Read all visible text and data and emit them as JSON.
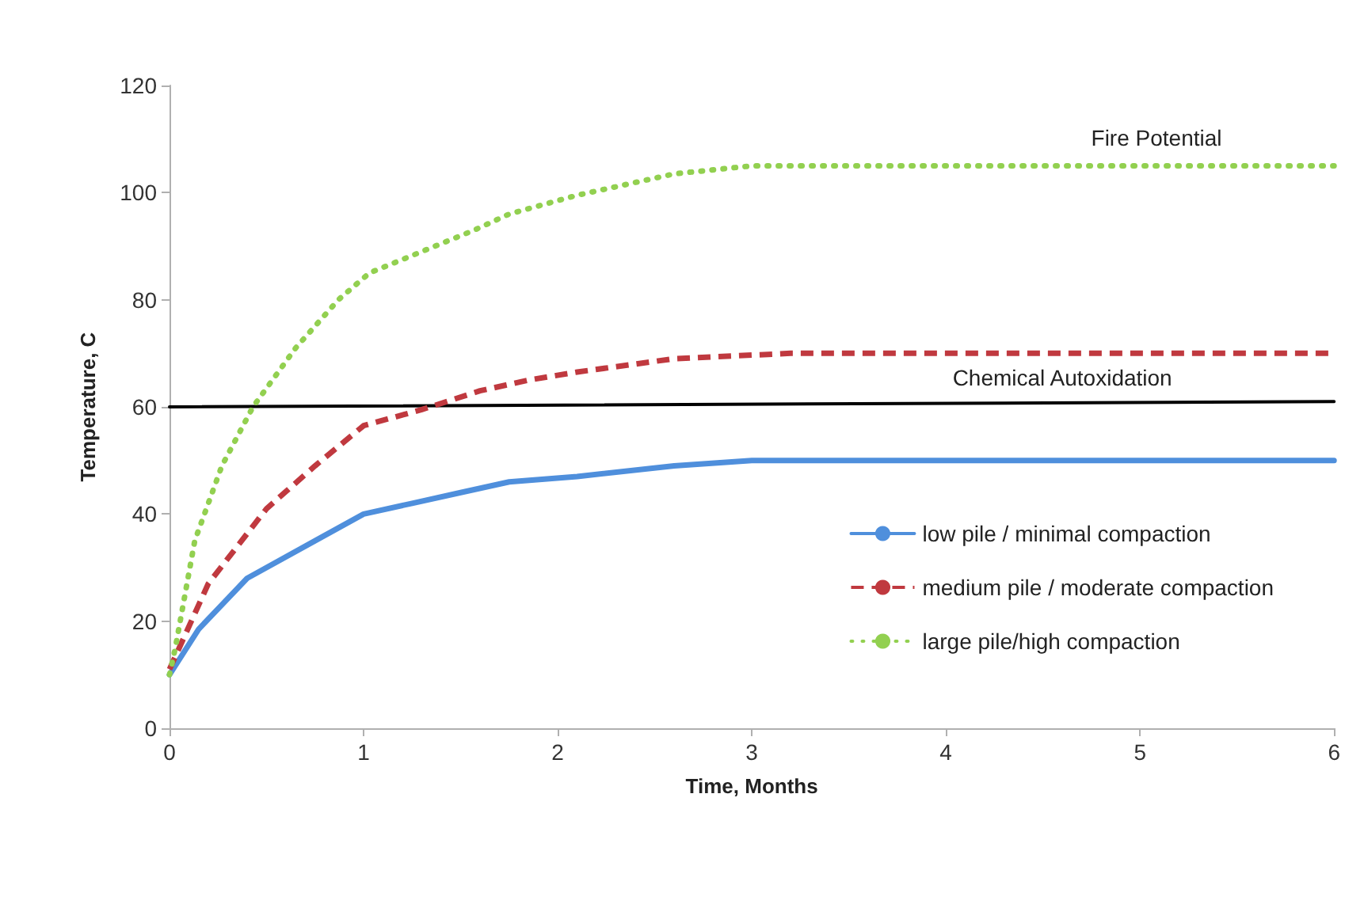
{
  "chart_data": {
    "type": "line",
    "xlabel": "Time, Months",
    "ylabel": "Temperature, C",
    "xlim": [
      0,
      6
    ],
    "xticks": [
      0,
      1,
      2,
      3,
      4,
      5,
      6
    ],
    "ylim": [
      0,
      120
    ],
    "yticks": [
      0,
      20,
      40,
      60,
      80,
      100,
      120
    ],
    "grid": false,
    "legend": "bottom right",
    "marker": "none",
    "series": [
      {
        "name": "low pile / minimal compaction",
        "color": "#4f8fdc",
        "line_style": "solid",
        "x": [
          0,
          0.15,
          0.4,
          0.75,
          1,
          1.25,
          1.5,
          1.75,
          2.1,
          2.6,
          3,
          4,
          5,
          6
        ],
        "values": [
          10,
          18.5,
          28,
          35,
          40,
          42,
          44,
          46,
          47,
          49,
          50,
          50,
          50,
          50
        ]
      },
      {
        "name": "medium pile / moderate compaction",
        "color": "#c0393f",
        "line_style": "dashed",
        "x": [
          0,
          0.05,
          0.2,
          0.5,
          0.75,
          1,
          1.3,
          1.6,
          1.85,
          2.1,
          2.6,
          3.2,
          4,
          5,
          6
        ],
        "values": [
          11,
          15,
          27,
          41,
          49,
          56.5,
          59.5,
          63,
          65,
          66.5,
          69,
          70,
          70,
          70,
          70
        ]
      },
      {
        "name": "large pile/high compaction",
        "color": "#92d050",
        "line_style": "dotted",
        "x": [
          0,
          0.03,
          0.13,
          0.27,
          0.43,
          0.65,
          0.87,
          1.03,
          1.3,
          1.57,
          1.75,
          2.1,
          2.6,
          3,
          4,
          5,
          6
        ],
        "values": [
          10,
          15,
          35,
          49,
          60,
          71,
          80,
          85,
          89,
          93,
          96,
          99.5,
          103.5,
          105,
          105,
          105,
          105
        ]
      },
      {
        "color": "#000000",
        "line_style": "solid",
        "x": [
          0,
          6
        ],
        "values": [
          60,
          61
        ]
      }
    ],
    "annotations": [
      "Fire Potential",
      {
        "text": "Chemical Autoxidation",
        "x": 4.6,
        "y": 61
      }
    ]
  }
}
